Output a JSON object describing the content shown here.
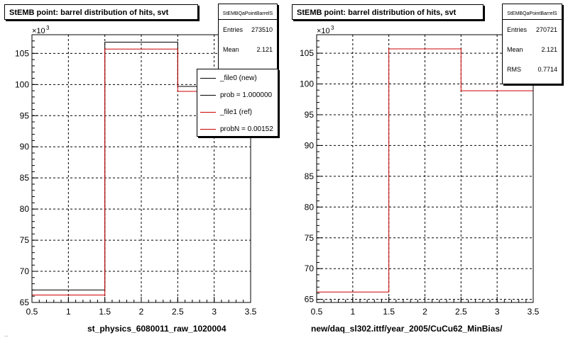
{
  "chart_data": [
    {
      "type": "step",
      "title": "StEMB point: barrel distribution of hits, svt",
      "xlabel": "st_physics_6080011_raw_1020004",
      "ylabel": "",
      "y_multiplier": "×10",
      "y_multiplier_exp": "3",
      "xlim": [
        0.5,
        3.5
      ],
      "ylim": [
        65,
        108
      ],
      "grid": true,
      "x_ticks": [
        "0.5",
        "1",
        "1.5",
        "2",
        "2.5",
        "3",
        "3.5"
      ],
      "y_ticks": [
        "65",
        "70",
        "75",
        "80",
        "85",
        "90",
        "95",
        "100",
        "105"
      ],
      "bin_edges": [
        0.5,
        1.5,
        2.5,
        3.5
      ],
      "series": [
        {
          "name": "_file0 (new)",
          "color": "#000000",
          "values": [
            67.0,
            106.8,
            99.7
          ]
        },
        {
          "name": "_file1 (ref)",
          "color": "#cc0000",
          "values": [
            66.2,
            105.7,
            98.9
          ]
        }
      ],
      "legend": {
        "position": "top-right",
        "entries": [
          {
            "label": "_file0 (new)",
            "color": "#000000"
          },
          {
            "label": "prob = 1.000000",
            "color": "#000000"
          },
          {
            "label": "_file1 (ref)",
            "color": "#cc0000"
          },
          {
            "label": "probN = 0.00152",
            "color": "#cc0000"
          }
        ]
      },
      "stats": {
        "title": "StEMBQaPointBarrelS",
        "rows": [
          {
            "label": "Entries",
            "value": "273510"
          },
          {
            "label": "Mean",
            "value": "2.121"
          }
        ]
      }
    },
    {
      "type": "step",
      "title": "StEMB point: barrel distribution of hits, svt",
      "xlabel": "new/daq_sl302.ittf/year_2005/CuCu62_MinBias/",
      "ylabel": "",
      "y_multiplier": "×10",
      "y_multiplier_exp": "3",
      "xlim": [
        0.5,
        3.5
      ],
      "ylim": [
        64.5,
        108
      ],
      "grid": true,
      "x_ticks": [
        "0.5",
        "1",
        "1.5",
        "2",
        "2.5",
        "3",
        "3.5"
      ],
      "y_ticks": [
        "65",
        "70",
        "75",
        "80",
        "85",
        "90",
        "95",
        "100",
        "105"
      ],
      "bin_edges": [
        0.5,
        1.5,
        2.5,
        3.5
      ],
      "series": [
        {
          "color": "#cc0000",
          "values": [
            66.2,
            105.7,
            98.9
          ]
        }
      ],
      "stats": {
        "title": "StEMBQaPointBarrelS",
        "rows": [
          {
            "label": "Entries",
            "value": "270721"
          },
          {
            "label": "Mean",
            "value": "2.121"
          },
          {
            "label": "RMS",
            "value": "0.7714"
          }
        ]
      }
    }
  ],
  "footer_text": "..."
}
